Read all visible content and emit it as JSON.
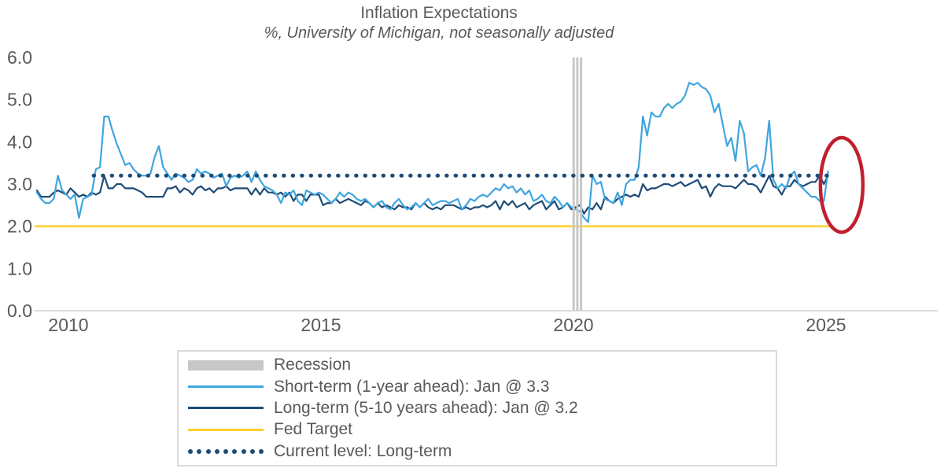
{
  "colors": {
    "short_term": "#3FA5DF",
    "long_term": "#1E4C77",
    "fed_target": "#FFD02F",
    "recession": "#C7C7C7",
    "annotation": "#C0202E",
    "axis": "#DCDCDC",
    "text": "#595959"
  },
  "legend": {
    "items": [
      {
        "label": "Recession"
      },
      {
        "label": "Short-term (1-year ahead): Jan @ 3.3"
      },
      {
        "label": "Long-term (5-10 years ahead): Jan @ 3.2"
      },
      {
        "label": "Fed Target"
      },
      {
        "label": "Current level: Long-term"
      }
    ]
  },
  "chart_data": {
    "type": "line",
    "title": "Inflation Expectations",
    "subtitle": "%, University of Michigan, not seasonally adjusted",
    "ylabel": "",
    "xlabel": "",
    "ylim": [
      0,
      6
    ],
    "grid": false,
    "legend_position": "bottom",
    "y_ticks": [
      {
        "value": 0,
        "label": "0.0"
      },
      {
        "value": 1,
        "label": "1.0"
      },
      {
        "value": 2,
        "label": "2.0"
      },
      {
        "value": 3,
        "label": "3.0"
      },
      {
        "value": 4,
        "label": "4.0"
      },
      {
        "value": 5,
        "label": "5.0"
      },
      {
        "value": 6,
        "label": "6.0"
      }
    ],
    "x_ticks": [
      {
        "year": 2010,
        "label": "2010"
      },
      {
        "year": 2015,
        "label": "2015"
      },
      {
        "year": 2020,
        "label": "2020"
      },
      {
        "year": 2025,
        "label": "2025"
      }
    ],
    "x_start": "2009-05",
    "frequency": "monthly",
    "fed_target": {
      "value": 2.0,
      "from": 2009.33,
      "to": 2025.12
    },
    "current_level": {
      "value": 3.2,
      "from": 2010.5,
      "to": 2025.12
    },
    "recession_band": {
      "from": 2019.98,
      "to": 2020.2,
      "bars": 3
    },
    "annotation_ellipse": {
      "cx_year": 2025.31,
      "cy_value": 2.98,
      "rx_years": 0.42,
      "ry_values": 1.12
    },
    "series": [
      {
        "name": "Short-term (1-year ahead)",
        "latest": "Jan @ 3.3",
        "values": [
          2.8,
          2.65,
          2.55,
          2.55,
          2.65,
          3.2,
          2.85,
          2.75,
          2.65,
          2.75,
          2.2,
          2.65,
          2.7,
          2.75,
          3.35,
          3.4,
          4.6,
          4.6,
          4.25,
          3.95,
          3.7,
          3.45,
          3.5,
          3.35,
          3.25,
          3.2,
          3.2,
          3.25,
          3.65,
          3.9,
          3.4,
          3.25,
          3.1,
          3.25,
          3.2,
          3.15,
          3.05,
          3.1,
          3.35,
          3.25,
          3.3,
          3.25,
          3.15,
          3.2,
          3.25,
          2.95,
          3.15,
          3.2,
          3.15,
          3.2,
          3.3,
          3.05,
          3.3,
          3.1,
          2.95,
          2.9,
          2.85,
          2.75,
          2.55,
          2.8,
          2.75,
          2.85,
          2.6,
          2.5,
          2.85,
          2.8,
          2.75,
          2.8,
          2.75,
          2.65,
          2.55,
          2.65,
          2.8,
          2.7,
          2.8,
          2.75,
          2.65,
          2.6,
          2.65,
          2.55,
          2.45,
          2.55,
          2.6,
          2.45,
          2.4,
          2.55,
          2.65,
          2.5,
          2.4,
          2.45,
          2.55,
          2.45,
          2.55,
          2.65,
          2.5,
          2.55,
          2.6,
          2.6,
          2.55,
          2.6,
          2.65,
          2.4,
          2.5,
          2.65,
          2.6,
          2.7,
          2.75,
          2.7,
          2.8,
          2.9,
          2.85,
          3.0,
          2.9,
          2.95,
          2.8,
          2.9,
          2.75,
          2.85,
          2.6,
          2.65,
          2.75,
          2.6,
          2.55,
          2.7,
          2.6,
          2.45,
          2.55,
          2.45,
          2.4,
          2.35,
          2.2,
          2.1,
          3.2,
          3.0,
          3.05,
          2.65,
          2.6,
          2.55,
          2.8,
          2.5,
          3.0,
          3.1,
          3.1,
          3.4,
          4.6,
          4.15,
          4.7,
          4.6,
          4.6,
          4.8,
          4.9,
          4.8,
          4.9,
          4.95,
          5.1,
          5.4,
          5.35,
          5.4,
          5.3,
          5.25,
          5.1,
          4.7,
          4.9,
          4.4,
          3.9,
          4.1,
          3.55,
          4.5,
          4.2,
          3.3,
          3.4,
          3.45,
          3.2,
          3.6,
          4.5,
          3.1,
          2.9,
          3.0,
          2.9,
          3.2,
          3.3,
          3.0,
          2.9,
          2.8,
          2.7,
          2.7,
          2.6,
          2.6,
          3.3
        ]
      },
      {
        "name": "Long-term (5-10 years ahead)",
        "latest": "Jan @ 3.2",
        "values": [
          2.85,
          2.7,
          2.7,
          2.7,
          2.8,
          2.85,
          2.8,
          2.75,
          2.9,
          2.8,
          2.7,
          2.75,
          2.7,
          2.8,
          2.75,
          2.8,
          3.2,
          2.9,
          2.9,
          3.0,
          3.0,
          2.9,
          2.9,
          2.9,
          2.85,
          2.8,
          2.7,
          2.7,
          2.7,
          2.7,
          2.7,
          2.9,
          2.9,
          2.95,
          2.8,
          2.9,
          2.85,
          2.75,
          2.9,
          2.95,
          2.85,
          2.9,
          2.8,
          2.9,
          2.9,
          2.95,
          2.85,
          2.9,
          2.9,
          2.9,
          2.9,
          2.75,
          2.9,
          2.75,
          2.9,
          2.8,
          2.8,
          2.75,
          2.8,
          2.7,
          2.8,
          2.6,
          2.75,
          2.75,
          2.6,
          2.75,
          2.75,
          2.75,
          2.5,
          2.55,
          2.55,
          2.65,
          2.55,
          2.6,
          2.65,
          2.6,
          2.55,
          2.5,
          2.6,
          2.55,
          2.45,
          2.55,
          2.45,
          2.5,
          2.45,
          2.4,
          2.5,
          2.45,
          2.45,
          2.4,
          2.55,
          2.45,
          2.55,
          2.45,
          2.4,
          2.45,
          2.4,
          2.5,
          2.5,
          2.5,
          2.45,
          2.4,
          2.45,
          2.4,
          2.45,
          2.45,
          2.5,
          2.45,
          2.5,
          2.6,
          2.4,
          2.6,
          2.5,
          2.6,
          2.45,
          2.5,
          2.55,
          2.4,
          2.5,
          2.55,
          2.6,
          2.4,
          2.5,
          2.6,
          2.4,
          2.45,
          2.55,
          2.4,
          2.45,
          2.5,
          2.3,
          2.45,
          2.4,
          2.55,
          2.4,
          2.7,
          2.6,
          2.55,
          2.65,
          2.7,
          2.75,
          2.7,
          2.75,
          2.7,
          3.0,
          2.85,
          2.9,
          2.9,
          2.95,
          3.0,
          3.0,
          2.95,
          3.0,
          3.05,
          2.95,
          3.0,
          3.05,
          3.1,
          2.9,
          2.95,
          2.7,
          2.9,
          3.0,
          2.95,
          2.95,
          2.95,
          2.9,
          3.0,
          3.1,
          3.0,
          3.0,
          2.95,
          2.8,
          3.0,
          3.2,
          2.95,
          2.9,
          2.75,
          2.95,
          2.95,
          3.1,
          3.0,
          2.95,
          3.0,
          3.05,
          3.05,
          3.2,
          3.0,
          3.2
        ]
      }
    ]
  }
}
